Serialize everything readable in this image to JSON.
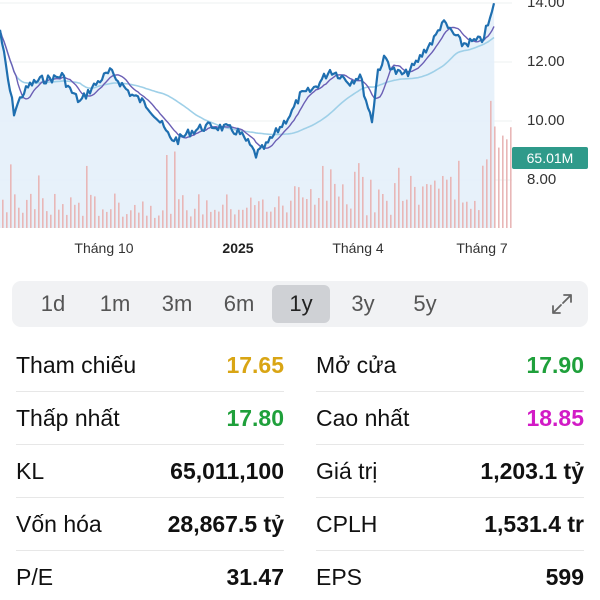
{
  "chart": {
    "y_labels": [
      "14.00",
      "12.00",
      "10.00",
      "8.00"
    ],
    "x_labels": [
      "Tháng 10",
      "2025",
      "Tháng 4",
      "Tháng 7"
    ],
    "volume_badge": "65.01M",
    "colors": {
      "price": "#1f6fb0",
      "ma_fast": "#6b5fb5",
      "ma_slow": "#9fd0e8",
      "fill": "#e4f0f9",
      "volume": "#e8b7b7",
      "badge": "#2f9a8a"
    }
  },
  "range_tabs": [
    {
      "label": "1d",
      "active": false
    },
    {
      "label": "1m",
      "active": false
    },
    {
      "label": "3m",
      "active": false
    },
    {
      "label": "6m",
      "active": false
    },
    {
      "label": "1y",
      "active": true
    },
    {
      "label": "3y",
      "active": false
    },
    {
      "label": "5y",
      "active": false
    }
  ],
  "expand_icon": "expand-icon",
  "stats": [
    {
      "left": {
        "label": "Tham chiếu",
        "value": "17.65",
        "color": "#d9a514"
      },
      "right": {
        "label": "Mở cửa",
        "value": "17.90",
        "color": "#1fa03b"
      }
    },
    {
      "left": {
        "label": "Thấp nhất",
        "value": "17.80",
        "color": "#1fa03b"
      },
      "right": {
        "label": "Cao nhất",
        "value": "18.85",
        "color": "#d21bc6"
      }
    },
    {
      "left": {
        "label": "KL",
        "value": "65,011,100",
        "color": "#111111"
      },
      "right": {
        "label": "Giá trị",
        "value": "1,203.1 tỷ",
        "color": "#111111"
      }
    },
    {
      "left": {
        "label": "Vốn hóa",
        "value": "28,867.5 tỷ",
        "color": "#111111"
      },
      "right": {
        "label": "CPLH",
        "value": "1,531.4 tr",
        "color": "#111111"
      }
    },
    {
      "left": {
        "label": "P/E",
        "value": "31.47",
        "color": "#111111"
      },
      "right": {
        "label": "EPS",
        "value": "599",
        "color": "#111111"
      }
    }
  ]
}
